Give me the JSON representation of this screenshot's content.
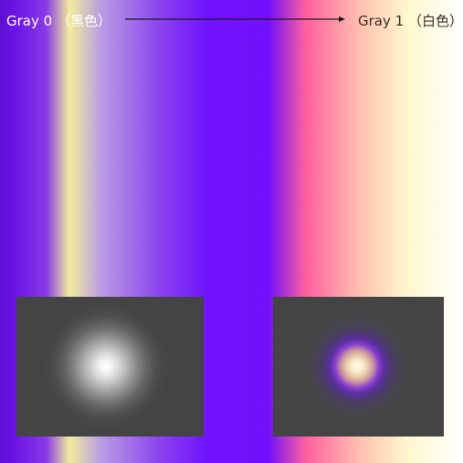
{
  "header": {
    "left_label": "Gray 0 （黑色）",
    "right_label": "Gray 1 （白色）"
  },
  "colors": {
    "gradient_stops": [
      "#5d10d0",
      "#6a12e6",
      "#8a3ae8",
      "#f2ec9c",
      "#b89ae4",
      "#8a40f0",
      "#7012ff",
      "#7310fb",
      "#ff5fa0",
      "#ffc2b0",
      "#fff7cf",
      "#ffffff"
    ],
    "panel_background": "#444444",
    "arrow_color": "#1a1a1a"
  },
  "panels": [
    {
      "name": "grayscale-glow",
      "description_icon": "radial-glow-icon"
    },
    {
      "name": "gradient-mapped-glow",
      "description_icon": "radial-glow-icon"
    }
  ]
}
